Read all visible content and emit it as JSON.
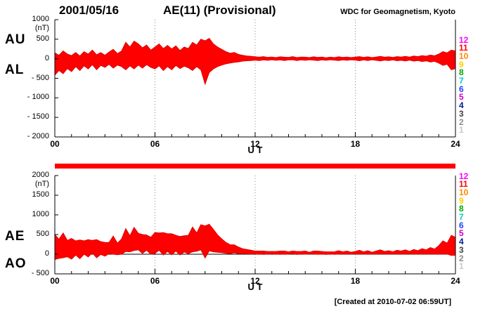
{
  "header": {
    "date": "2001/05/16",
    "title": "AE(11) (Provisional)",
    "credit": "WDC for Geomagnetism, Kyoto"
  },
  "footer": {
    "created": "[Created at 2010-07-02 06:59UT]"
  },
  "colors": {
    "series_fill": "#ff0000",
    "series_stroke": "#dd0000",
    "availability_bar": "#ff0000",
    "axis": "#000000",
    "grid": "#888888"
  },
  "stations": [
    [
      "12",
      "#ff00ff"
    ],
    [
      "11",
      "#ff0000"
    ],
    [
      "10",
      "#ff8800"
    ],
    [
      "9",
      "#ffcc00"
    ],
    [
      "8",
      "#00aa00"
    ],
    [
      "7",
      "#00cccc"
    ],
    [
      "6",
      "#2244ff"
    ],
    [
      "5",
      "#cc00cc"
    ],
    [
      "4",
      "#001a99"
    ],
    [
      "3",
      "#404040"
    ],
    [
      "2",
      "#8c8c8c"
    ],
    [
      "1",
      "#c8c8c8"
    ]
  ],
  "panel1": {
    "unit": "(nT)",
    "label_top": "AU",
    "label_bottom": "AL",
    "yticks": [
      [
        "1000",
        1000
      ],
      [
        "500",
        500
      ],
      [
        "0",
        0
      ],
      [
        "- 500",
        -500
      ],
      [
        "- 1000",
        -1000
      ],
      [
        "- 1500",
        -1500
      ],
      [
        "- 2000",
        -2000
      ]
    ],
    "xticks": [
      [
        "00",
        0
      ],
      [
        "06",
        6
      ],
      [
        "12",
        12
      ],
      [
        "18",
        18
      ],
      [
        "24",
        24
      ]
    ],
    "xlabel": "U T"
  },
  "panel2": {
    "unit": "(nT)",
    "label_top": "AE",
    "label_bottom": "AO",
    "yticks": [
      [
        "2000",
        2000
      ],
      [
        "1500",
        1500
      ],
      [
        "1000",
        1000
      ],
      [
        "500",
        500
      ],
      [
        "0",
        0
      ],
      [
        "- 500",
        -500
      ]
    ],
    "xticks": [
      [
        "00",
        0
      ],
      [
        "06",
        6
      ],
      [
        "12",
        12
      ],
      [
        "18",
        18
      ],
      [
        "24",
        24
      ]
    ],
    "xlabel": "U T"
  },
  "chart_data": [
    {
      "type": "area",
      "title": "AU and AL indices, 2001/05/16",
      "xlabel": "U T",
      "ylabel": "nT",
      "x_start": 0,
      "x_step_hours": 0.25,
      "x_end": 24,
      "xlim": [
        0,
        24
      ],
      "ylim": [
        -2000,
        1000
      ],
      "grid_hours": [
        6,
        12,
        18
      ],
      "series": [
        {
          "name": "AU",
          "values": [
            150,
            90,
            200,
            120,
            80,
            160,
            70,
            180,
            120,
            220,
            100,
            160,
            90,
            170,
            240,
            130,
            200,
            420,
            300,
            450,
            380,
            280,
            350,
            220,
            300,
            380,
            260,
            340,
            250,
            330,
            210,
            300,
            260,
            420,
            350,
            500,
            460,
            520,
            380,
            300,
            240,
            180,
            140,
            160,
            110,
            90,
            70,
            60,
            50,
            40,
            55,
            35,
            45,
            30,
            50,
            40,
            35,
            55,
            30,
            45,
            40,
            30,
            50,
            35,
            45,
            25,
            40,
            30,
            50,
            35,
            45,
            30,
            40,
            55,
            35,
            50,
            30,
            45,
            60,
            40,
            50,
            35,
            55,
            45,
            60,
            40,
            70,
            55,
            80,
            65,
            95,
            75,
            120,
            180,
            150,
            220,
            200
          ]
        },
        {
          "name": "AL",
          "values": [
            -420,
            -300,
            -380,
            -250,
            -330,
            -200,
            -300,
            -180,
            -260,
            -150,
            -280,
            -170,
            -220,
            -140,
            -240,
            -160,
            -200,
            -280,
            -180,
            -260,
            -160,
            -240,
            -150,
            -220,
            -260,
            -180,
            -300,
            -200,
            -280,
            -170,
            -250,
            -190,
            -230,
            -300,
            -200,
            -280,
            -650,
            -350,
            -260,
            -200,
            -160,
            -130,
            -110,
            -90,
            -80,
            -60,
            -50,
            -45,
            -35,
            -45,
            -30,
            -40,
            -25,
            -40,
            -30,
            -45,
            -30,
            -25,
            -45,
            -30,
            -40,
            -25,
            -35,
            -45,
            -30,
            -40,
            -25,
            -35,
            -45,
            -30,
            -40,
            -25,
            -35,
            -50,
            -30,
            -45,
            -25,
            -40,
            -55,
            -35,
            -45,
            -30,
            -50,
            -40,
            -55,
            -35,
            -60,
            -45,
            -70,
            -55,
            -85,
            -65,
            -110,
            -170,
            -140,
            -280,
            -250
          ]
        }
      ]
    },
    {
      "type": "area",
      "title": "AE and AO indices, 2001/05/16",
      "xlabel": "U T",
      "ylabel": "nT",
      "x_start": 0,
      "x_step_hours": 0.25,
      "x_end": 24,
      "xlim": [
        0,
        24
      ],
      "ylim": [
        -500,
        2000
      ],
      "grid_hours": [
        6,
        12,
        18
      ],
      "series": [
        {
          "name": "AE",
          "values": [
            500,
            380,
            540,
            350,
            400,
            340,
            360,
            340,
            370,
            350,
            370,
            320,
            300,
            300,
            460,
            280,
            390,
            650,
            470,
            680,
            530,
            500,
            490,
            430,
            550,
            540,
            550,
            520,
            520,
            480,
            450,
            470,
            480,
            690,
            540,
            750,
            720,
            760,
            630,
            490,
            390,
            300,
            240,
            240,
            180,
            140,
            120,
            100,
            80,
            80,
            80,
            70,
            70,
            70,
            80,
            80,
            60,
            80,
            70,
            70,
            80,
            50,
            80,
            80,
            70,
            60,
            60,
            60,
            90,
            60,
            80,
            50,
            70,
            100,
            60,
            90,
            50,
            80,
            110,
            70,
            90,
            60,
            100,
            80,
            110,
            70,
            120,
            90,
            140,
            110,
            170,
            130,
            220,
            340,
            280,
            480,
            430
          ]
        },
        {
          "name": "AO",
          "values": [
            -135,
            -105,
            -90,
            -65,
            -125,
            -20,
            -115,
            0,
            -70,
            35,
            -90,
            -5,
            -50,
            15,
            0,
            -15,
            0,
            70,
            60,
            95,
            110,
            20,
            100,
            0,
            20,
            100,
            -20,
            70,
            -15,
            80,
            -20,
            55,
            15,
            60,
            75,
            110,
            -95,
            85,
            60,
            50,
            40,
            25,
            15,
            35,
            15,
            15,
            10,
            8,
            8,
            -3,
            13,
            -3,
            10,
            -5,
            10,
            -3,
            3,
            15,
            -8,
            8,
            0,
            3,
            8,
            -5,
            8,
            -8,
            8,
            -3,
            3,
            3,
            3,
            3,
            3,
            3,
            3,
            3,
            3,
            3,
            3,
            3,
            3,
            3,
            3,
            3,
            3,
            3,
            5,
            5,
            5,
            5,
            5,
            5,
            5,
            5,
            5,
            -30,
            -25
          ]
        }
      ]
    }
  ]
}
